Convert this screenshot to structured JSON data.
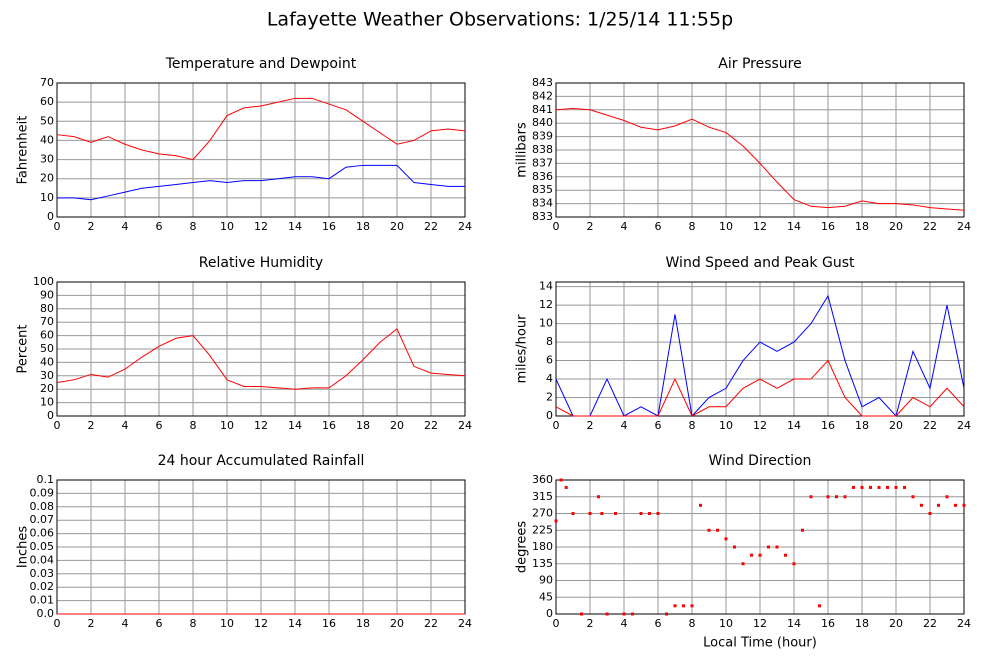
{
  "title": "Lafayette Weather Observations: 1/25/14 11:55p",
  "chart_data": [
    {
      "type": "line",
      "title": "Temperature and Dewpoint",
      "ylabel": "Fahrenheit",
      "x": [
        0,
        1,
        2,
        3,
        4,
        5,
        6,
        7,
        8,
        9,
        10,
        11,
        12,
        13,
        14,
        15,
        16,
        17,
        18,
        19,
        20,
        21,
        22,
        23,
        24
      ],
      "series": [
        {
          "color": "#ff0000",
          "values": [
            43,
            42,
            39,
            42,
            38,
            35,
            33,
            32,
            30,
            40,
            53,
            57,
            58,
            60,
            62,
            62,
            59,
            56,
            50,
            44,
            38,
            40,
            45,
            46,
            45
          ]
        },
        {
          "color": "#0000ff",
          "values": [
            10,
            10,
            9,
            11,
            13,
            15,
            16,
            17,
            18,
            19,
            18,
            19,
            19,
            20,
            21,
            21,
            20,
            26,
            27,
            27,
            27,
            18,
            17,
            16,
            16
          ]
        }
      ],
      "xlim": [
        0,
        24
      ],
      "ylim": [
        0,
        70
      ],
      "xticks": [
        0,
        2,
        4,
        6,
        8,
        10,
        12,
        14,
        16,
        18,
        20,
        22,
        24
      ],
      "yticks": [
        0,
        10,
        20,
        30,
        40,
        50,
        60,
        70
      ],
      "grid": true
    },
    {
      "type": "line",
      "title": "Air Pressure",
      "ylabel": "millibars",
      "x": [
        0,
        1,
        2,
        3,
        4,
        5,
        6,
        7,
        8,
        9,
        10,
        11,
        12,
        13,
        14,
        15,
        16,
        17,
        18,
        19,
        20,
        21,
        22,
        23,
        24
      ],
      "series": [
        {
          "color": "#ff0000",
          "values": [
            841,
            841.1,
            841,
            840.6,
            840.2,
            839.7,
            839.5,
            839.8,
            840.3,
            839.7,
            839.3,
            838.3,
            837,
            835.6,
            834.3,
            833.8,
            833.7,
            833.8,
            834.2,
            834,
            834,
            833.9,
            833.7,
            833.6,
            833.5
          ]
        }
      ],
      "xlim": [
        0,
        24
      ],
      "ylim": [
        833,
        843
      ],
      "xticks": [
        0,
        2,
        4,
        6,
        8,
        10,
        12,
        14,
        16,
        18,
        20,
        22,
        24
      ],
      "yticks": [
        833,
        834,
        835,
        836,
        837,
        838,
        839,
        840,
        841,
        842,
        843
      ],
      "grid": true
    },
    {
      "type": "line",
      "title": "Relative Humidity",
      "ylabel": "Percent",
      "x": [
        0,
        1,
        2,
        3,
        4,
        5,
        6,
        7,
        8,
        9,
        10,
        11,
        12,
        13,
        14,
        15,
        16,
        17,
        18,
        19,
        20,
        21,
        22,
        23,
        24
      ],
      "series": [
        {
          "color": "#ff0000",
          "values": [
            25,
            27,
            31,
            29,
            35,
            44,
            52,
            58,
            60,
            45,
            27,
            22,
            22,
            21,
            20,
            21,
            21,
            30,
            42,
            55,
            65,
            37,
            32,
            31,
            30
          ]
        }
      ],
      "xlim": [
        0,
        24
      ],
      "ylim": [
        0,
        100
      ],
      "xticks": [
        0,
        2,
        4,
        6,
        8,
        10,
        12,
        14,
        16,
        18,
        20,
        22,
        24
      ],
      "yticks": [
        0,
        10,
        20,
        30,
        40,
        50,
        60,
        70,
        80,
        90,
        100
      ],
      "grid": true
    },
    {
      "type": "line",
      "title": "Wind Speed and Peak Gust",
      "ylabel": "miles/hour",
      "x": [
        0,
        1,
        2,
        3,
        4,
        5,
        6,
        7,
        8,
        9,
        10,
        11,
        12,
        13,
        14,
        15,
        16,
        17,
        18,
        19,
        20,
        21,
        22,
        23,
        24
      ],
      "series": [
        {
          "color": "#0000ff",
          "values": [
            4,
            0,
            0,
            4,
            0,
            1,
            0,
            11,
            0,
            2,
            3,
            6,
            8,
            7,
            8,
            10,
            13,
            6,
            1,
            2,
            0,
            7,
            3,
            12,
            3
          ]
        },
        {
          "color": "#ff0000",
          "values": [
            1,
            0,
            0,
            0,
            0,
            0,
            0,
            4,
            0,
            1,
            1,
            3,
            4,
            3,
            4,
            4,
            6,
            2,
            0,
            0,
            0,
            2,
            1,
            3,
            1
          ]
        }
      ],
      "xlim": [
        0,
        24
      ],
      "ylim": [
        0,
        14.5
      ],
      "xticks": [
        0,
        2,
        4,
        6,
        8,
        10,
        12,
        14,
        16,
        18,
        20,
        22,
        24
      ],
      "yticks": [
        0,
        2,
        4,
        6,
        8,
        10,
        12,
        14
      ],
      "grid": true
    },
    {
      "type": "line",
      "title": "24 hour Accumulated Rainfall",
      "ylabel": "Inches",
      "x": [
        0,
        24
      ],
      "series": [
        {
          "color": "#ff0000",
          "values": [
            0,
            0
          ]
        }
      ],
      "xlim": [
        0,
        24
      ],
      "ylim": [
        0,
        0.1
      ],
      "xticks": [
        0,
        2,
        4,
        6,
        8,
        10,
        12,
        14,
        16,
        18,
        20,
        22,
        24
      ],
      "yticks": [
        {
          "value": 0,
          "label": "0.0"
        },
        0.01,
        0.02,
        0.03,
        0.04,
        0.05,
        0.06,
        0.07,
        0.08,
        0.09,
        0.1
      ],
      "grid": true
    },
    {
      "type": "scatter",
      "title": "Wind Direction",
      "ylabel": "degrees",
      "xlabel": "Local Time (hour)",
      "x": [
        0,
        0.3,
        0.6,
        1,
        1.5,
        2,
        2.5,
        2.7,
        3,
        3.5,
        4,
        4.5,
        5,
        5.5,
        6,
        6.5,
        7,
        7.5,
        8,
        8.5,
        9,
        9.5,
        10,
        10.5,
        11,
        11.5,
        12,
        12.5,
        13,
        13.5,
        14,
        14.5,
        15,
        15.5,
        16,
        16.5,
        17,
        17.5,
        18,
        18.5,
        19,
        19.5,
        20,
        20.5,
        21,
        21.5,
        22,
        22.5,
        23,
        23.5,
        24
      ],
      "series": [
        {
          "color": "#ff0000",
          "values": [
            250,
            360,
            340,
            270,
            0,
            270,
            315,
            270,
            0,
            270,
            0,
            0,
            270,
            270,
            270,
            0,
            22,
            22,
            22,
            292,
            225,
            225,
            202,
            180,
            135,
            158,
            158,
            180,
            180,
            158,
            135,
            225,
            315,
            22,
            315,
            315,
            315,
            340,
            340,
            340,
            340,
            340,
            340,
            340,
            315,
            292,
            270,
            292,
            315,
            292,
            292
          ]
        }
      ],
      "xlim": [
        0,
        24
      ],
      "ylim": [
        0,
        360
      ],
      "xticks": [
        0,
        2,
        4,
        6,
        8,
        10,
        12,
        14,
        16,
        18,
        20,
        22,
        24
      ],
      "yticks": [
        0,
        45,
        90,
        135,
        180,
        225,
        270,
        315,
        360
      ],
      "grid": true
    }
  ]
}
